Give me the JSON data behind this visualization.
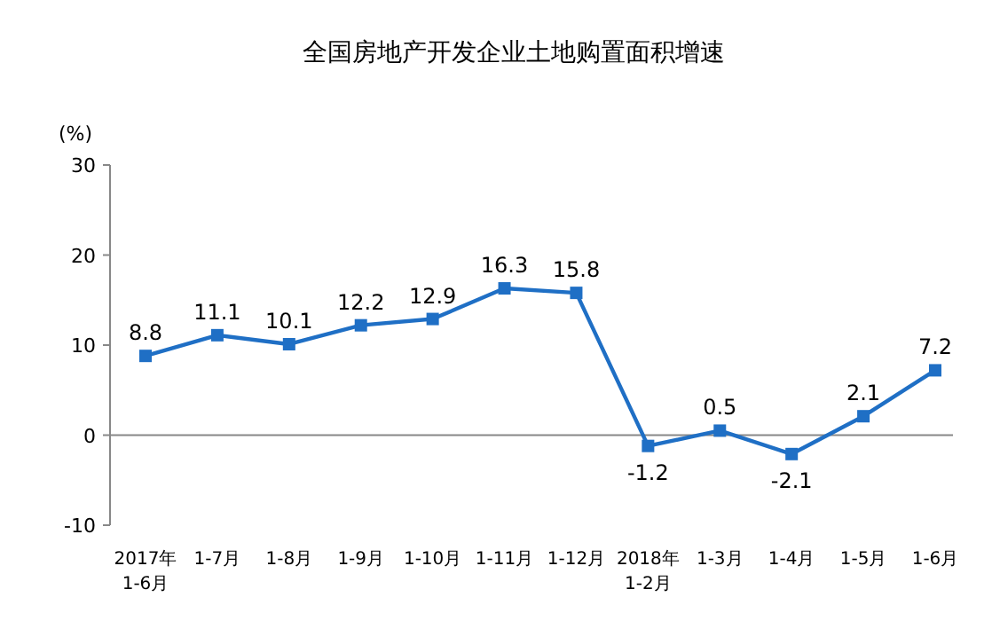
{
  "chart_data": {
    "type": "line",
    "title": "全国房地产开发企业土地购置面积增速",
    "ylabel": "(%)",
    "categories": [
      "2017年\n1-6月",
      "1-7月",
      "1-8月",
      "1-9月",
      "1-10月",
      "1-11月",
      "1-12月",
      "2018年\n1-2月",
      "1-3月",
      "1-4月",
      "1-5月",
      "1-6月"
    ],
    "series": [
      {
        "color": "#1f6fc5",
        "values": [
          8.8,
          11.1,
          10.1,
          12.2,
          12.9,
          16.3,
          15.8,
          -1.2,
          0.5,
          -2.1,
          2.1,
          7.2
        ]
      }
    ],
    "ylim": [
      -10,
      30
    ],
    "yticks": [
      -10,
      0,
      10,
      20,
      30
    ],
    "data_labels": true,
    "marker": "square"
  }
}
